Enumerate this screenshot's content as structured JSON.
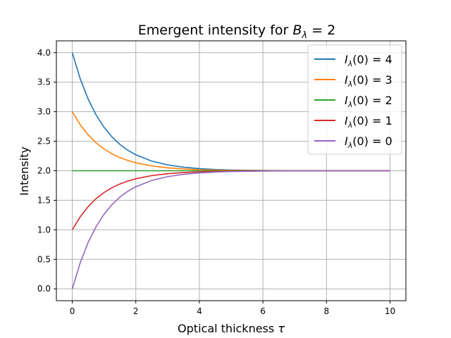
{
  "chart_data": {
    "type": "line",
    "title_prefix": "Emergent intensity for ",
    "title_symbol": "B",
    "title_subscript": "λ",
    "title_suffix": " = 2",
    "xlabel_text": "Optical thickness ",
    "xlabel_symbol": "τ",
    "ylabel": "Intensity",
    "xlim": [
      -0.5,
      10.5
    ],
    "ylim": [
      -0.2,
      4.2
    ],
    "x_ticks": [
      0,
      2,
      4,
      6,
      8,
      10
    ],
    "x_tick_labels": [
      "0",
      "2",
      "4",
      "6",
      "8",
      "10"
    ],
    "y_ticks": [
      0.0,
      0.5,
      1.0,
      1.5,
      2.0,
      2.5,
      3.0,
      3.5,
      4.0
    ],
    "y_tick_labels": [
      "0.0",
      "0.5",
      "1.0",
      "1.5",
      "2.0",
      "2.5",
      "3.0",
      "3.5",
      "4.0"
    ],
    "grid": true,
    "legend_placement": "top-right",
    "series": [
      {
        "name": "4",
        "color": "#1f77b4",
        "x": [
          0,
          0.25,
          0.5,
          0.75,
          1,
          1.25,
          1.5,
          1.75,
          2,
          2.5,
          3,
          3.5,
          4,
          4.5,
          5,
          6,
          7,
          8,
          9,
          10
        ],
        "y": [
          4.0,
          3.558,
          3.213,
          2.945,
          2.736,
          2.573,
          2.446,
          2.347,
          2.271,
          2.164,
          2.1,
          2.06,
          2.037,
          2.022,
          2.013,
          2.005,
          2.002,
          2.001,
          2.0,
          2.0
        ]
      },
      {
        "name": "3",
        "color": "#ff7f0e",
        "x": [
          0,
          0.25,
          0.5,
          0.75,
          1,
          1.25,
          1.5,
          1.75,
          2,
          2.5,
          3,
          3.5,
          4,
          4.5,
          5,
          6,
          7,
          8,
          9,
          10
        ],
        "y": [
          3.0,
          2.779,
          2.607,
          2.472,
          2.368,
          2.287,
          2.223,
          2.174,
          2.135,
          2.082,
          2.05,
          2.03,
          2.018,
          2.011,
          2.007,
          2.002,
          2.001,
          2.0,
          2.0,
          2.0
        ]
      },
      {
        "name": "2",
        "color": "#2ca02c",
        "x": [
          0,
          10
        ],
        "y": [
          2.0,
          2.0
        ]
      },
      {
        "name": "1",
        "color": "#d62728",
        "x": [
          0,
          0.25,
          0.5,
          0.75,
          1,
          1.25,
          1.5,
          1.75,
          2,
          2.5,
          3,
          3.5,
          4,
          4.5,
          5,
          6,
          7,
          8,
          9,
          10
        ],
        "y": [
          1.0,
          1.221,
          1.393,
          1.528,
          1.632,
          1.713,
          1.777,
          1.826,
          1.865,
          1.918,
          1.95,
          1.97,
          1.982,
          1.989,
          1.993,
          1.998,
          1.999,
          2.0,
          2.0,
          2.0
        ]
      },
      {
        "name": "0",
        "color": "#9467bd",
        "x": [
          0,
          0.25,
          0.5,
          0.75,
          1,
          1.25,
          1.5,
          1.75,
          2,
          2.5,
          3,
          3.5,
          4,
          4.5,
          5,
          6,
          7,
          8,
          9,
          10
        ],
        "y": [
          0.0,
          0.442,
          0.787,
          1.055,
          1.264,
          1.427,
          1.554,
          1.653,
          1.729,
          1.836,
          1.9,
          1.94,
          1.963,
          1.978,
          1.987,
          1.995,
          1.998,
          1.999,
          2.0,
          2.0
        ]
      }
    ],
    "legend_label_prefix": "I",
    "legend_label_subscript": "λ",
    "legend_label_arg": "(0) = "
  }
}
